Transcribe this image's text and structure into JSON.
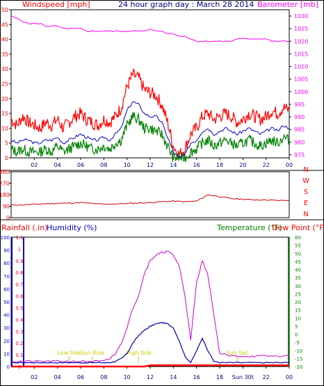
{
  "header": {
    "left_label": "Windspeed [mph]",
    "title": "24 hour graph day : March 28 2014",
    "right_label": "Barometer [mb]"
  },
  "bottom_header": {
    "rainfall": "Rainfall (.in)",
    "humidity": "Humidity (%)",
    "temperature": "Temperature (°F)",
    "dewpoint": "Dew Point (°F)"
  },
  "colors": {
    "wind": "#ff0000",
    "wind_avg": "#0000cc",
    "wind_gust": "#008000",
    "baro": "#ff00ff",
    "direction": "#cc0000",
    "humidity": "#cc00cc",
    "temperature": "#0000aa",
    "frame": "#000000"
  },
  "chart_data": [
    {
      "type": "line",
      "name": "wind_baro",
      "x_ticks": [
        "02",
        "04",
        "06",
        "08",
        "10",
        "12",
        "14",
        "16",
        "18",
        "20",
        "22",
        "00"
      ],
      "y_left_ticks": [
        "0",
        "5",
        "10",
        "15",
        "20",
        "25",
        "30",
        "35",
        "40",
        "45",
        "50"
      ],
      "y_right_ticks": [
        "975",
        "980",
        "985",
        "990",
        "995",
        "1000",
        "1005",
        "1010",
        "1015",
        "1020",
        "1025",
        "1030"
      ],
      "ylim_left": [
        0,
        50
      ],
      "ylim_right": [
        973.75,
        1032.5
      ],
      "x": [
        0,
        0.5,
        1,
        1.5,
        2,
        2.5,
        3,
        3.5,
        4,
        4.5,
        5,
        5.5,
        6,
        6.5,
        7,
        7.5,
        8,
        8.5,
        9,
        9.5,
        10,
        10.5,
        11,
        11.5,
        12,
        12.5,
        13,
        13.5,
        14,
        14.5,
        15,
        15.5,
        16,
        16.5,
        17,
        17.5,
        18,
        18.5,
        19,
        19.5,
        20,
        20.5,
        21,
        21.5,
        22,
        22.5,
        23,
        23.5,
        24
      ],
      "series": [
        {
          "key": "gust",
          "values": [
            13,
            11,
            14,
            12,
            11,
            10,
            12,
            11,
            13,
            10,
            12,
            14,
            15,
            13,
            12,
            11,
            13,
            12,
            14,
            17,
            24,
            28,
            27,
            23,
            22,
            21,
            18,
            12,
            4,
            1,
            3,
            8,
            10,
            14,
            15,
            13,
            14,
            15,
            14,
            12,
            13,
            15,
            14,
            13,
            14,
            16,
            15,
            17,
            16
          ]
        },
        {
          "key": "avg",
          "values": [
            6,
            5,
            6,
            6,
            5,
            5,
            6,
            6,
            7,
            5,
            6,
            7,
            8,
            7,
            6,
            6,
            7,
            6,
            8,
            10,
            16,
            19,
            18,
            15,
            14,
            14,
            12,
            7,
            2,
            0,
            1,
            5,
            6,
            9,
            10,
            8,
            9,
            10,
            9,
            8,
            9,
            10,
            9,
            8,
            9,
            10,
            9,
            11,
            10
          ]
        },
        {
          "key": "low",
          "values": [
            3,
            2,
            3,
            2,
            2,
            2,
            3,
            2,
            4,
            2,
            3,
            4,
            5,
            4,
            3,
            3,
            4,
            3,
            5,
            6,
            11,
            14,
            13,
            10,
            10,
            9,
            8,
            4,
            0,
            0,
            0,
            2,
            3,
            5,
            6,
            4,
            5,
            6,
            5,
            4,
            5,
            6,
            5,
            4,
            5,
            6,
            5,
            7,
            6
          ]
        },
        {
          "key": "baro",
          "values": [
            1030,
            1029,
            1028,
            1027,
            1027,
            1027,
            1026,
            1026,
            1026,
            1025,
            1025,
            1025,
            1025,
            1024,
            1024,
            1024,
            1024,
            1024,
            1024,
            1024,
            1024,
            1024,
            1024,
            1024,
            1025,
            1024,
            1024,
            1023,
            1023,
            1022,
            1022,
            1021,
            1020,
            1020,
            1020,
            1020,
            1020,
            1020,
            1020,
            1021,
            1021,
            1021,
            1021,
            1021,
            1021,
            1020,
            1020,
            1020,
            1020
          ]
        }
      ]
    },
    {
      "type": "line",
      "name": "wind_direction",
      "x_ticks": [],
      "y_ticks": [
        "0",
        "90",
        "180",
        "270",
        "360"
      ],
      "compass": [
        "N",
        "W",
        "S",
        "E",
        "N"
      ],
      "ylim": [
        0,
        360
      ],
      "x": [
        0,
        1,
        2,
        3,
        4,
        5,
        6,
        7,
        8,
        9,
        10,
        11,
        12,
        13,
        14,
        15,
        16,
        17,
        18,
        19,
        20,
        21,
        22,
        23,
        24
      ],
      "values": [
        100,
        100,
        105,
        110,
        112,
        115,
        118,
        112,
        105,
        108,
        112,
        115,
        118,
        125,
        130,
        125,
        130,
        180,
        165,
        150,
        145,
        140,
        140,
        135,
        135
      ]
    },
    {
      "type": "line",
      "name": "rain_humidity_temp",
      "x_ticks": [
        "02",
        "04",
        "06",
        "08",
        "10",
        "12",
        "14",
        "16",
        "18",
        "Sun 30t",
        "22",
        "00"
      ],
      "y_humidity_ticks": [
        "0",
        "10",
        "20",
        "30",
        "40",
        "50",
        "60",
        "70",
        "80",
        "90",
        "100"
      ],
      "y_rain_ticks": [
        "0",
        "0.1",
        "0.2",
        "0.3",
        "0.4",
        "0.5",
        "0.6",
        "0.7",
        "0.8",
        "0.9",
        "1",
        "1.1"
      ],
      "y_temp_ticks": [
        "-20",
        "-15",
        "-10",
        "-5",
        "0",
        "5",
        "10",
        "15",
        "20",
        "25",
        "30",
        "35",
        "40",
        "45",
        "50",
        "55",
        "60"
      ],
      "ylim_humidity": [
        0,
        100
      ],
      "annotations": [
        {
          "label": "Low tide",
          "x": 5
        },
        {
          "label": "Sun Rise",
          "x": 7
        },
        {
          "label": "High tide",
          "x": 11
        },
        {
          "label": "Sun Set",
          "x": 19.5
        }
      ],
      "x": [
        0,
        1,
        2,
        3,
        4,
        5,
        6,
        7,
        8,
        8.5,
        9,
        9.5,
        10,
        10.5,
        11,
        11.5,
        12,
        12.5,
        13,
        13.5,
        14,
        14.5,
        15,
        15.5,
        16,
        16.5,
        17,
        17.5,
        18,
        19,
        20,
        21,
        22,
        23,
        24
      ],
      "humidity": [
        4,
        4,
        4,
        4,
        4,
        4,
        4,
        4,
        4,
        6,
        10,
        18,
        30,
        45,
        55,
        72,
        82,
        86,
        88,
        89,
        86,
        78,
        55,
        20,
        65,
        82,
        70,
        40,
        10,
        8,
        8,
        8,
        8,
        8,
        8
      ],
      "temperature": [
        3,
        3,
        3,
        3,
        3,
        3,
        3,
        3,
        3,
        3,
        4,
        6,
        10,
        18,
        24,
        28,
        31,
        33,
        34,
        33,
        30,
        20,
        8,
        3,
        12,
        22,
        12,
        4,
        3,
        3,
        3,
        3,
        3,
        3,
        3
      ],
      "rain": [
        0,
        0,
        0,
        0,
        0,
        0,
        0,
        0,
        0,
        0,
        0,
        0,
        0,
        0,
        0,
        0,
        0.01,
        0.01,
        0.01,
        0.01,
        0.01,
        0.01,
        0.01,
        0.01,
        0.01,
        0.01,
        0.01,
        0.01,
        0.01,
        0.01,
        0.01,
        0.01,
        0.01,
        0.01,
        0.01
      ]
    }
  ]
}
